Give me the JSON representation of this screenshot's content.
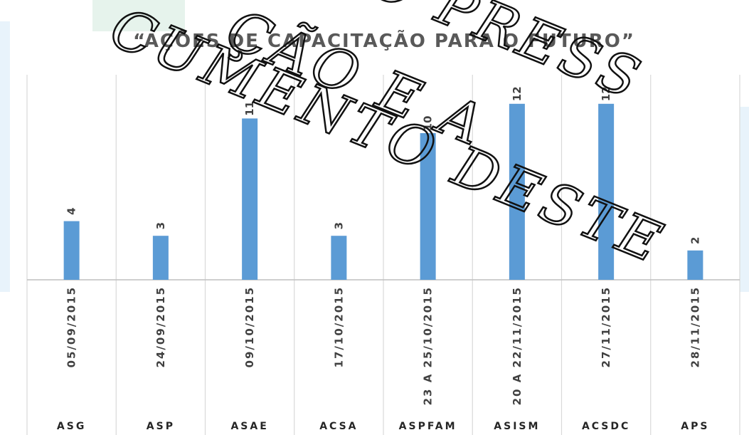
{
  "chart_data": {
    "type": "bar",
    "title": "“AÇÕES DE CAPACITAÇÃO PARA O FUTURO”",
    "categories": [
      "ASG",
      "ASP",
      "ASAE",
      "ACSA",
      "ASPFAM",
      "ASISM",
      "ACSDC",
      "APS"
    ],
    "dates": [
      "05/09/2015",
      "24/09/2015",
      "09/10/2015",
      "17/10/2015",
      "23 A 25/10/2015",
      "20 A 22/11/2015",
      "27/11/2015",
      "28/11/2015"
    ],
    "values": [
      4,
      3,
      11,
      3,
      10,
      12,
      12,
      2
    ],
    "ylim": [
      0,
      12
    ],
    "bar_color": "#5b9bd5",
    "grid": false,
    "legend": "none"
  },
  "watermark": {
    "lines": [
      "IÇÃO PRESS",
      "ÇÃO E A",
      "CUMENTO DESTE"
    ]
  }
}
